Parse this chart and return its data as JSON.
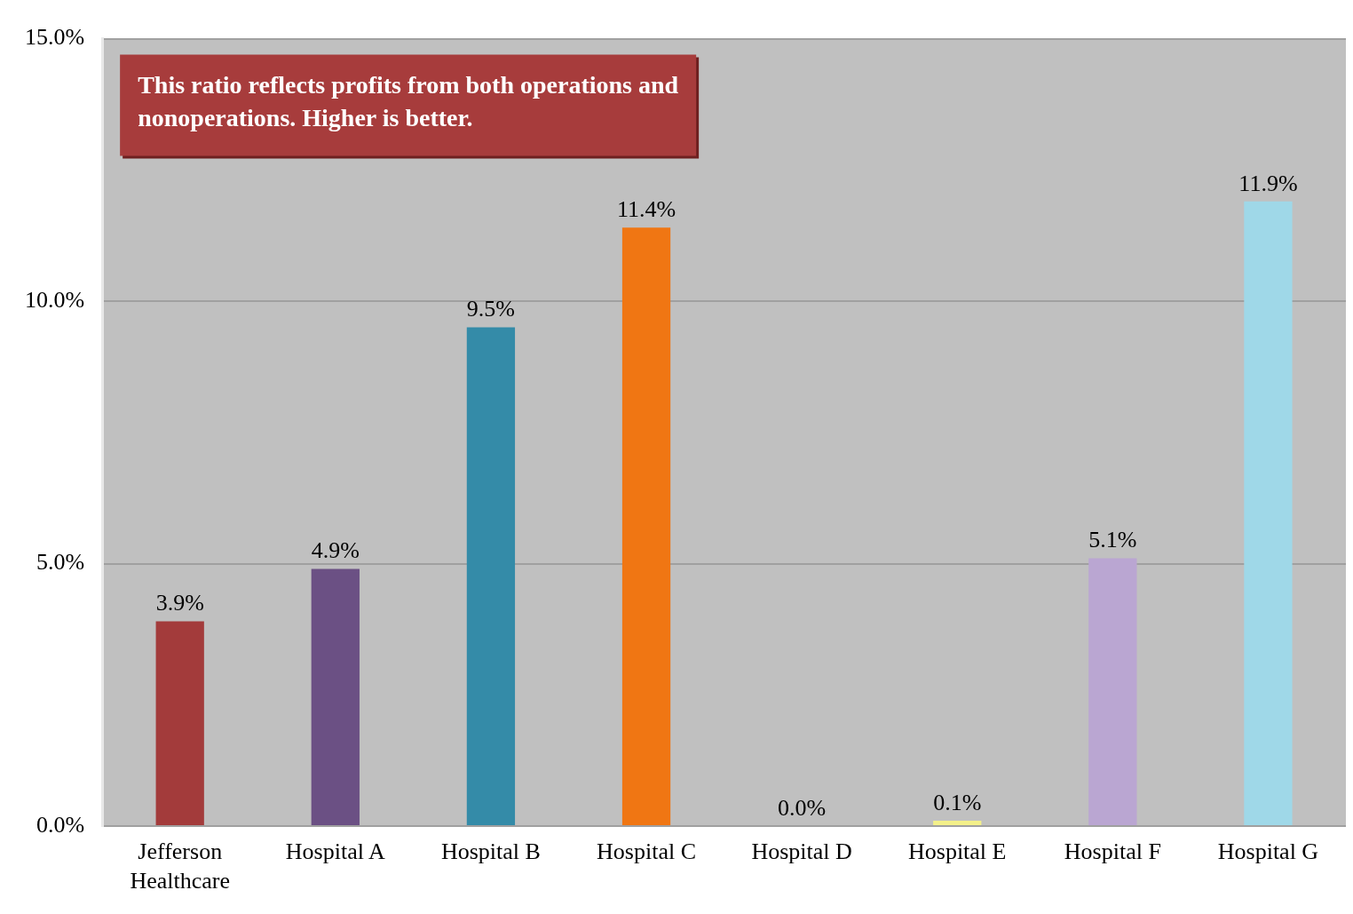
{
  "chart_data": {
    "type": "bar",
    "categories": [
      "Jefferson Healthcare",
      "Hospital A",
      "Hospital B",
      "Hospital C",
      "Hospital D",
      "Hospital E",
      "Hospital F",
      "Hospital G"
    ],
    "values": [
      3.9,
      4.9,
      9.5,
      11.4,
      0.0,
      0.1,
      5.1,
      11.9
    ],
    "colors": [
      "#a33b3b",
      "#6b5084",
      "#348ba8",
      "#f07613",
      "#9bbb59",
      "#f3f08a",
      "#baa6d2",
      "#9fd8e8"
    ],
    "value_labels": [
      "3.9%",
      "4.9%",
      "9.5%",
      "11.4%",
      "0.0%",
      "0.1%",
      "5.1%",
      "11.9%"
    ],
    "ylim": [
      0,
      15
    ],
    "yticks": [
      {
        "value": 0,
        "label": "0.0%"
      },
      {
        "value": 5,
        "label": "5.0%"
      },
      {
        "value": 10,
        "label": "10.0%"
      },
      {
        "value": 15,
        "label": "15.0%"
      }
    ],
    "grid": "y",
    "legend": false,
    "annotations": [
      "This ratio reflects profits from both operations and nonoperations. Higher is better."
    ]
  }
}
